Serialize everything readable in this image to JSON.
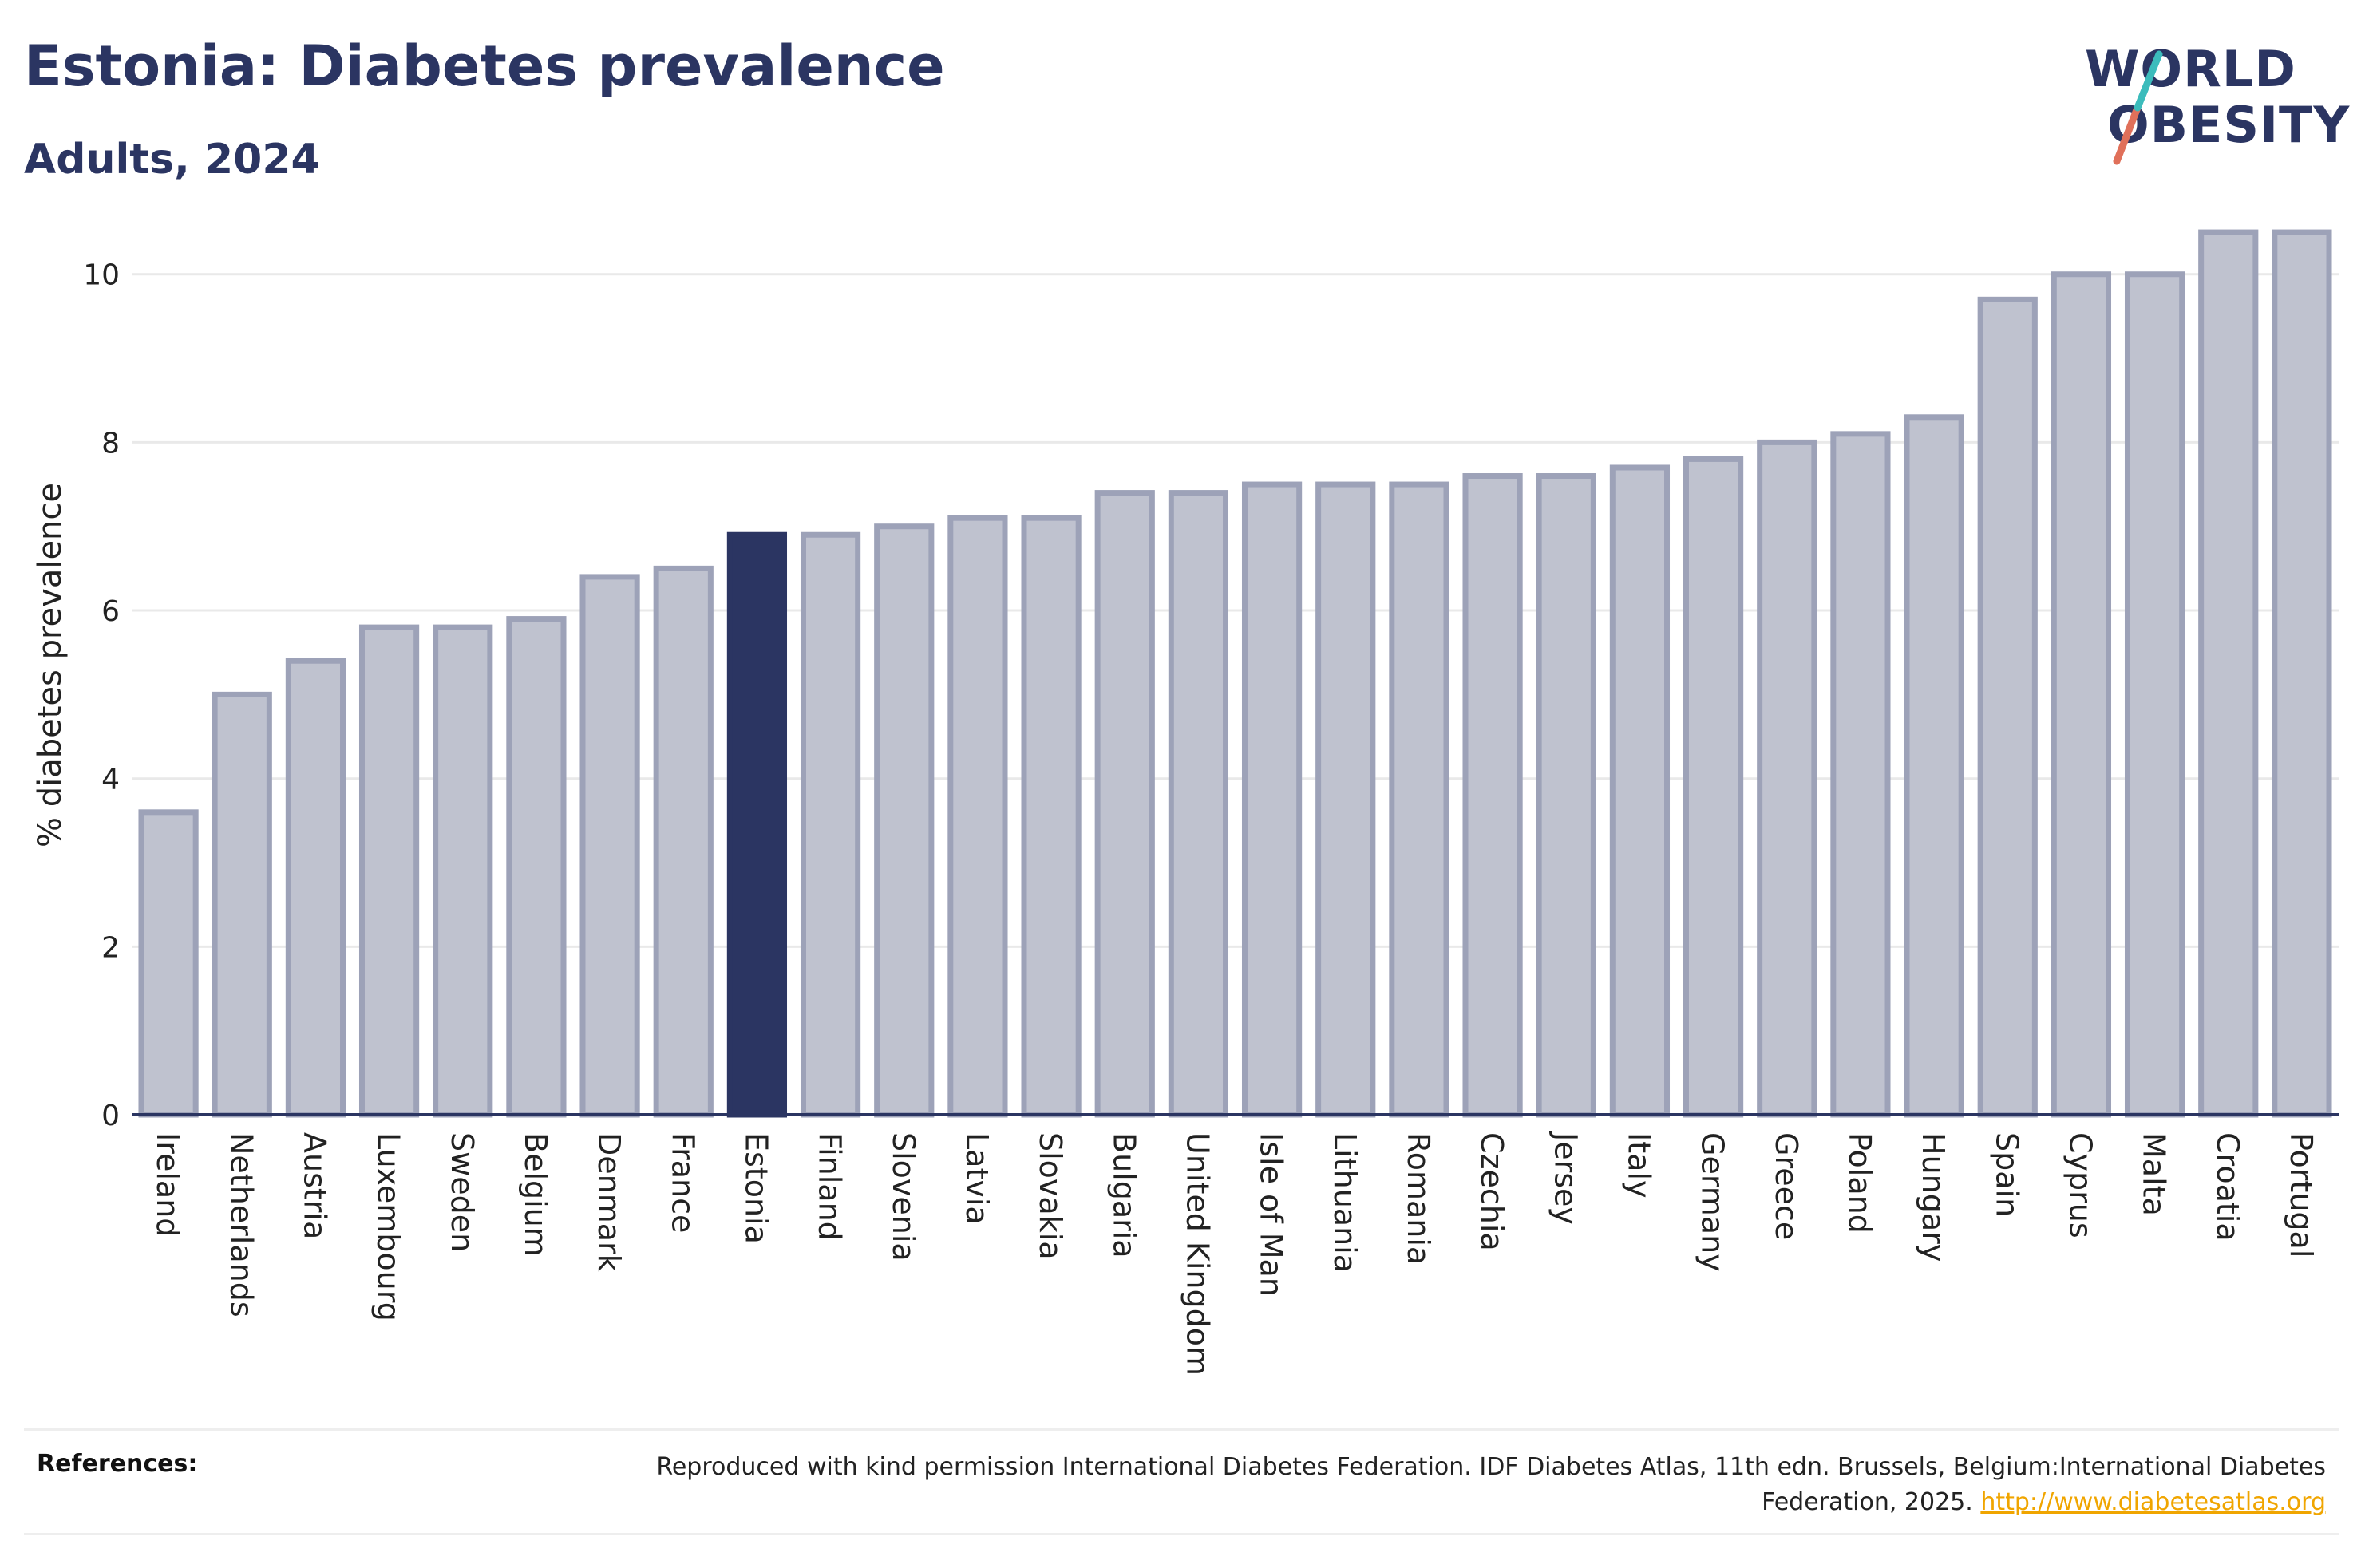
{
  "header": {
    "title": "Estonia: Diabetes prevalence",
    "subtitle": "Adults, 2024"
  },
  "logo": {
    "line1": "WORLD",
    "line2": "OBESITY"
  },
  "chart_data": {
    "type": "bar",
    "ylabel": "% diabetes prevalence",
    "ylim": [
      0,
      10.7
    ],
    "yticks": [
      0,
      2,
      4,
      6,
      8,
      10
    ],
    "grid": true,
    "highlight": "Estonia",
    "colors": {
      "bar": "#bfc2cf",
      "bar_border": "#9da2b8",
      "highlight": "#2b3562",
      "grid": "#e9e9e9",
      "axis": "#2b3562"
    },
    "categories": [
      "Ireland",
      "Netherlands",
      "Austria",
      "Luxembourg",
      "Sweden",
      "Belgium",
      "Denmark",
      "France",
      "Estonia",
      "Finland",
      "Slovenia",
      "Latvia",
      "Slovakia",
      "Bulgaria",
      "United Kingdom",
      "Isle of Man",
      "Lithuania",
      "Romania",
      "Czechia",
      "Jersey",
      "Italy",
      "Germany",
      "Greece",
      "Poland",
      "Hungary",
      "Spain",
      "Cyprus",
      "Malta",
      "Croatia",
      "Portugal"
    ],
    "values": [
      3.6,
      5.0,
      5.4,
      5.8,
      5.8,
      5.9,
      6.4,
      6.5,
      6.9,
      6.9,
      7.0,
      7.1,
      7.1,
      7.4,
      7.4,
      7.5,
      7.5,
      7.5,
      7.6,
      7.6,
      7.7,
      7.8,
      8.0,
      8.1,
      8.3,
      9.7,
      10.0,
      10.0,
      10.5,
      10.5
    ]
  },
  "footer": {
    "label": "References:",
    "text": "Reproduced with kind permission International Diabetes Federation. IDF Diabetes Atlas, 11th edn. Brussels, Belgium:International Diabetes Federation, 2025.",
    "link": "http://www.diabetesatlas.org"
  }
}
